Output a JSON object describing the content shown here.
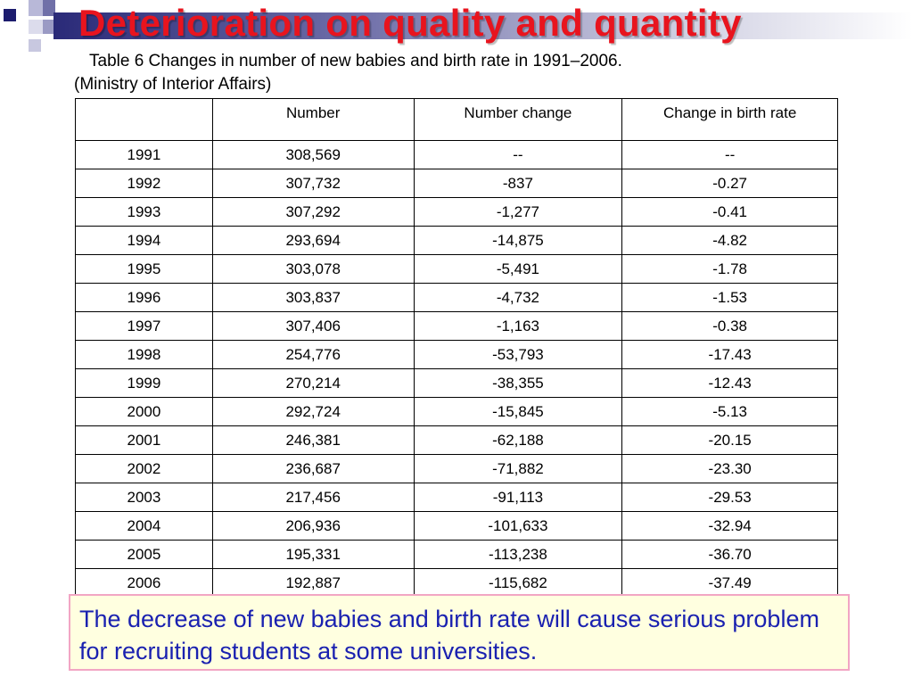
{
  "slide": {
    "title": "Deterioration on quality and quantity",
    "caption_line1": "Table 6  Changes in number of new babies and birth rate in 1991–2006.",
    "caption_line2": "(Ministry of Interior Affairs)",
    "note": "The decrease of new babies and birth rate will cause serious problem for recruiting students at some universities.",
    "colors": {
      "title": "#e8141e",
      "note_text": "#1a21b0",
      "note_bg": "#ffffe0",
      "note_border": "#f2a6c4"
    }
  },
  "table": {
    "headers": [
      "",
      "Number",
      "Number change",
      "Change in birth rate"
    ],
    "rows": [
      [
        "1991",
        "308,569",
        "--",
        "--"
      ],
      [
        "1992",
        "307,732",
        "-837",
        "-0.27"
      ],
      [
        "1993",
        "307,292",
        "-1,277",
        "-0.41"
      ],
      [
        "1994",
        "293,694",
        "-14,875",
        "-4.82"
      ],
      [
        "1995",
        "303,078",
        "-5,491",
        "-1.78"
      ],
      [
        "1996",
        "303,837",
        "-4,732",
        "-1.53"
      ],
      [
        "1997",
        "307,406",
        "-1,163",
        "-0.38"
      ],
      [
        "1998",
        "254,776",
        "-53,793",
        "-17.43"
      ],
      [
        "1999",
        "270,214",
        "-38,355",
        "-12.43"
      ],
      [
        "2000",
        "292,724",
        "-15,845",
        "-5.13"
      ],
      [
        "2001",
        "246,381",
        "-62,188",
        "-20.15"
      ],
      [
        "2002",
        "236,687",
        "-71,882",
        "-23.30"
      ],
      [
        "2003",
        "217,456",
        "-91,113",
        "-29.53"
      ],
      [
        "2004",
        "206,936",
        "-101,633",
        "-32.94"
      ],
      [
        "2005",
        "195,331",
        "-113,238",
        "-36.70"
      ],
      [
        "2006",
        "192,887",
        "-115,682",
        "-37.49"
      ]
    ]
  }
}
